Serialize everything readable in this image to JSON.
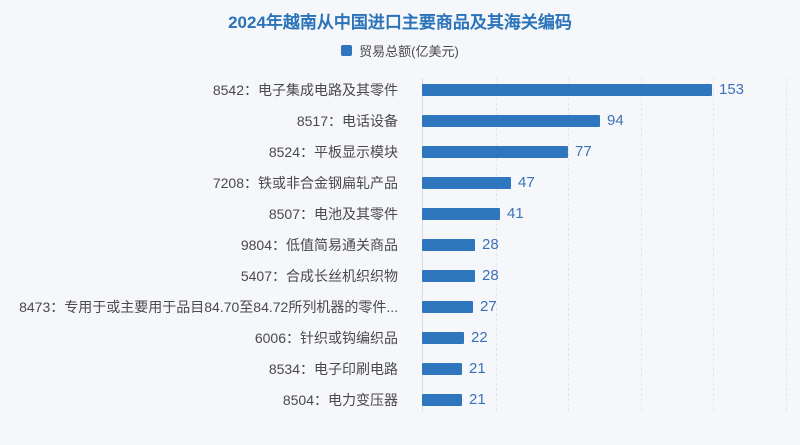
{
  "header": {
    "title": "2024年越南从中国进口主要商品及其海关编码",
    "title_color": "#2a73b8"
  },
  "legend": {
    "label": "贸易总额(亿美元)",
    "swatch_color": "#2e76bd"
  },
  "chart_data": {
    "type": "bar",
    "orientation": "horizontal",
    "title": "2024年越南从中国进口主要商品及其海关编码",
    "legend_entries": [
      "贸易总额(亿美元)"
    ],
    "categories": [
      "8542：电子集成电路及其零件",
      "8517：电话设备",
      "8524：平板显示模块",
      "7208：铁或非合金钢扁轧产品",
      "8507：电池及其零件",
      "9804：低值简易通关商品",
      "5407：合成长丝机织织物",
      "8473：专用于或主要用于品目84.70至84.72所列机器的零件...",
      "6006：针织或钩编织品",
      "8534：电子印刷电路",
      "8504：电力变压器"
    ],
    "values": [
      153,
      94,
      77,
      47,
      41,
      28,
      28,
      27,
      22,
      21,
      21
    ],
    "unit": "亿美元",
    "xlabel": "",
    "ylabel": "",
    "xlim": [
      0,
      191
    ],
    "grid": "vertical-dashed, 5 unlabeled gridlines",
    "value_labels_shown": true,
    "bar_color": "#2e76bd",
    "value_label_color": "#3c72b8",
    "category_label_color": "#4a4a4a",
    "background_color": "#f5f7fa"
  }
}
